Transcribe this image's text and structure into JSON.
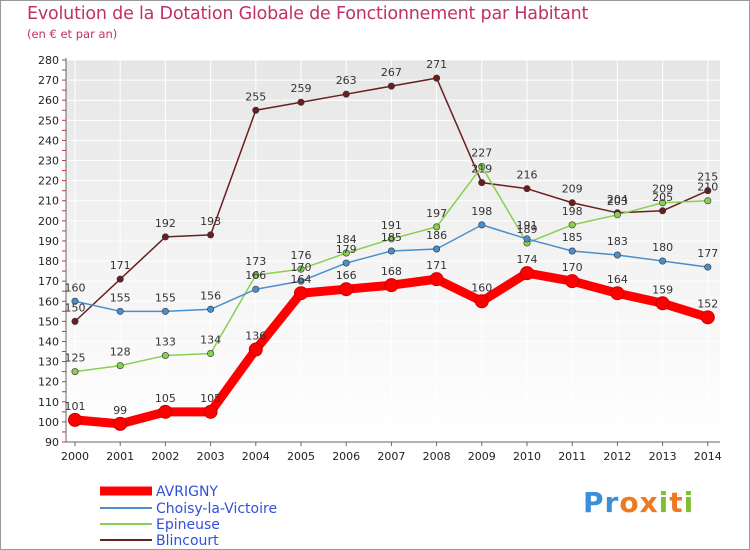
{
  "header": {
    "title": "Evolution de la Dotation Globale de Fonctionnement par Habitant",
    "subtitle": "(en € et par an)"
  },
  "logo": {
    "text": "Proxiti",
    "letters": [
      "P",
      "r",
      "o",
      "x",
      "i",
      "t",
      "i"
    ],
    "letter_colors": [
      "#3a8fd8",
      "#3a8fd8",
      "#f07820",
      "#f07820",
      "#80c030",
      "#f07820",
      "#80c030"
    ]
  },
  "chart_data": {
    "type": "line",
    "title": "Evolution de la Dotation Globale de Fonctionnement par Habitant",
    "subtitle": "(en € et par an)",
    "xlabel": "",
    "ylabel": "",
    "x": [
      "2000",
      "2001",
      "2002",
      "2003",
      "2004",
      "2005",
      "2006",
      "2007",
      "2008",
      "2009",
      "2010",
      "2011",
      "2012",
      "2013",
      "2014"
    ],
    "ylim": [
      90,
      280
    ],
    "yticks": [
      90,
      100,
      110,
      120,
      130,
      140,
      150,
      160,
      170,
      180,
      190,
      200,
      210,
      220,
      230,
      240,
      250,
      260,
      270,
      280
    ],
    "grid": true,
    "legend_position": "bottom-left",
    "series": [
      {
        "name": "AVRIGNY",
        "color": "#ff0000",
        "emphasis": true,
        "values": [
          101,
          99,
          105,
          105,
          136,
          164,
          166,
          168,
          171,
          160,
          174,
          170,
          164,
          159,
          152
        ],
        "labels": [
          "101",
          "99",
          "105",
          "105",
          "136",
          "164",
          "166",
          "168",
          "171",
          "160",
          "174",
          "170",
          "164",
          "159",
          "152"
        ]
      },
      {
        "name": "Choisy-la-Victoire",
        "color": "#4a8fcc",
        "emphasis": false,
        "values": [
          160,
          155,
          155,
          156,
          166,
          170,
          179,
          185,
          186,
          198,
          191,
          185,
          183,
          180,
          177
        ],
        "labels": [
          "160",
          "155",
          "155",
          "156",
          "166",
          "170",
          "179",
          "185",
          "186",
          "198",
          "191",
          "185",
          "183",
          "180",
          "177"
        ]
      },
      {
        "name": "Epineuse",
        "color": "#88d050",
        "emphasis": false,
        "values": [
          125,
          128,
          133,
          134,
          173,
          176,
          184,
          191,
          197,
          227,
          189,
          198,
          203,
          209,
          210
        ],
        "labels": [
          "125",
          "128",
          "133",
          "134",
          "173",
          "176",
          "184",
          "191",
          "197",
          "227",
          "189",
          "198",
          "203",
          "209",
          "210"
        ]
      },
      {
        "name": "Blincourt",
        "color": "#6a1f1f",
        "emphasis": false,
        "values": [
          150,
          171,
          192,
          193,
          255,
          259,
          263,
          267,
          271,
          219,
          216,
          209,
          204,
          205,
          215
        ],
        "labels": [
          "150",
          "171",
          "192",
          "193",
          "255",
          "259",
          "263",
          "267",
          "271",
          "219",
          "216",
          "209",
          "204",
          "205",
          "215"
        ]
      }
    ]
  }
}
